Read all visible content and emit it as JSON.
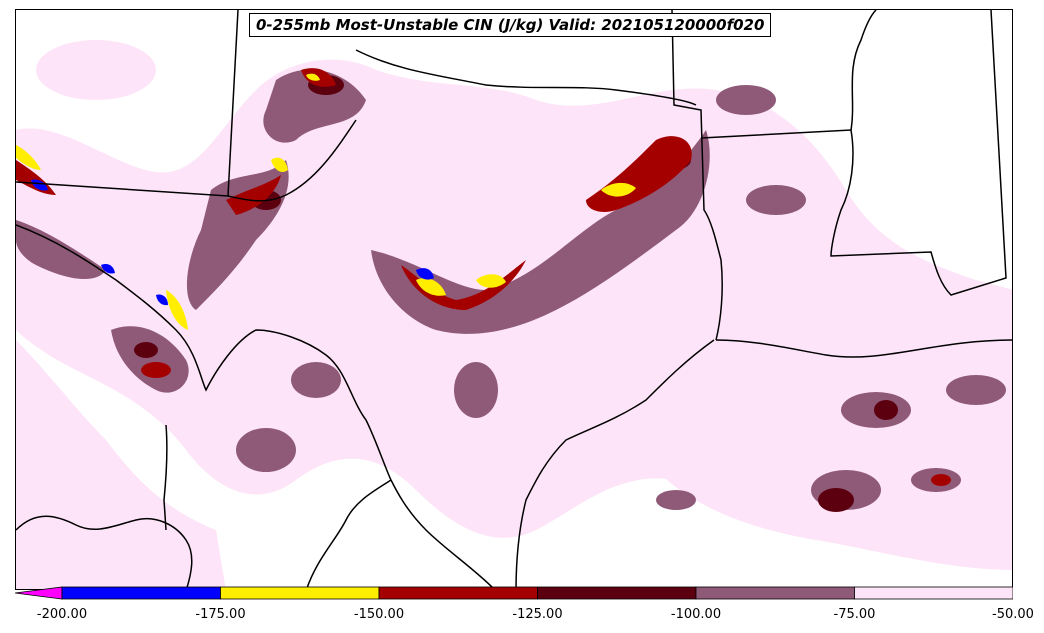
{
  "title": "0-255mb Most-Unstable CIN (J/kg) Valid: 202105120000f020",
  "legend": {
    "levels": [
      {
        "min": null,
        "max": -200,
        "color": "#ff00ff"
      },
      {
        "min": -200,
        "max": -175,
        "color": "#0000ff"
      },
      {
        "min": -175,
        "max": -150,
        "color": "#ffee00"
      },
      {
        "min": -150,
        "max": -125,
        "color": "#a50000"
      },
      {
        "min": -125,
        "max": -100,
        "color": "#5c0010"
      },
      {
        "min": -100,
        "max": -75,
        "color": "#8f5a78"
      },
      {
        "min": -75,
        "max": -50,
        "color": "#fde4f8"
      }
    ],
    "tick_labels": [
      "-200.00",
      "-175.00",
      "-150.00",
      "-125.00",
      "-100.00",
      "-75.00",
      "-50.00"
    ]
  }
}
